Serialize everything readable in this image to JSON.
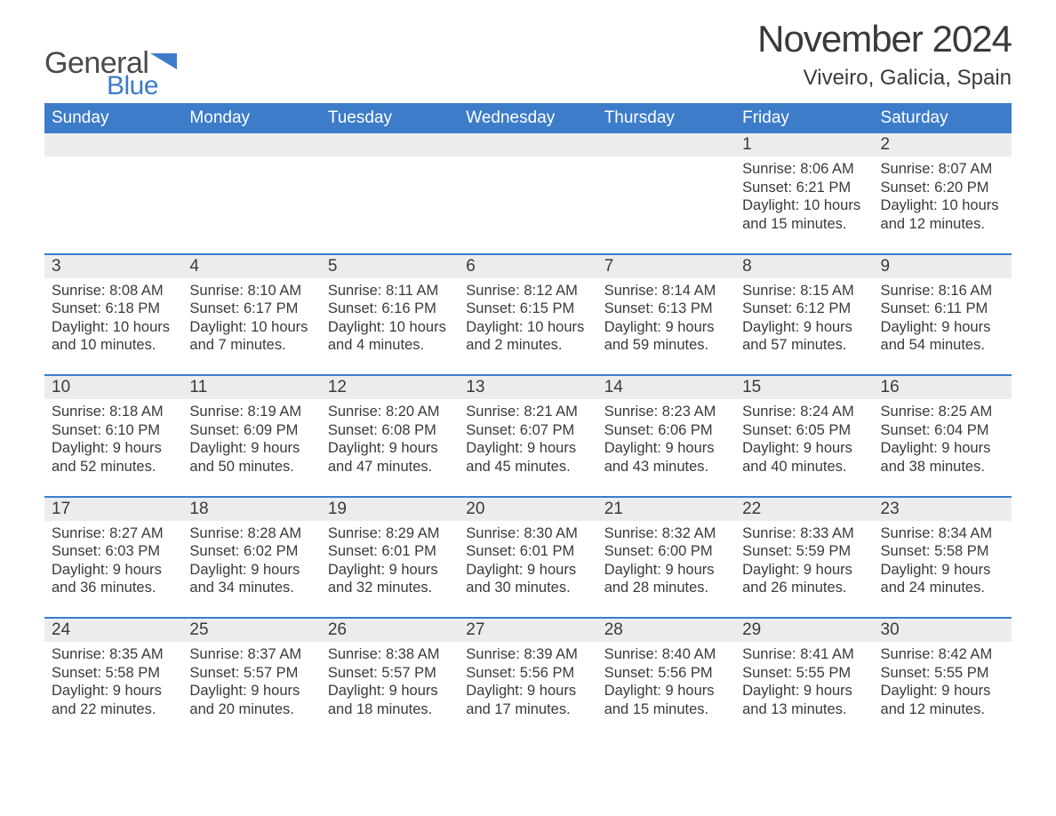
{
  "brand": {
    "general": "General",
    "blue": "Blue"
  },
  "title": "November 2024",
  "location": "Viveiro, Galicia, Spain",
  "colors": {
    "accent": "#3d7cc9",
    "row_bg": "#ececec",
    "text": "#3a3a3a",
    "background": "#ffffff"
  },
  "fonts": {
    "title_pt": 42,
    "location_pt": 24,
    "dow_pt": 19,
    "daynum_pt": 19,
    "info_pt": 16.5
  },
  "days_of_week": [
    "Sunday",
    "Monday",
    "Tuesday",
    "Wednesday",
    "Thursday",
    "Friday",
    "Saturday"
  ],
  "weeks": [
    [
      null,
      null,
      null,
      null,
      null,
      {
        "d": "1",
        "sr": "Sunrise: 8:06 AM",
        "ss": "Sunset: 6:21 PM",
        "dl1": "Daylight: 10 hours",
        "dl2": "and 15 minutes."
      },
      {
        "d": "2",
        "sr": "Sunrise: 8:07 AM",
        "ss": "Sunset: 6:20 PM",
        "dl1": "Daylight: 10 hours",
        "dl2": "and 12 minutes."
      }
    ],
    [
      {
        "d": "3",
        "sr": "Sunrise: 8:08 AM",
        "ss": "Sunset: 6:18 PM",
        "dl1": "Daylight: 10 hours",
        "dl2": "and 10 minutes."
      },
      {
        "d": "4",
        "sr": "Sunrise: 8:10 AM",
        "ss": "Sunset: 6:17 PM",
        "dl1": "Daylight: 10 hours",
        "dl2": "and 7 minutes."
      },
      {
        "d": "5",
        "sr": "Sunrise: 8:11 AM",
        "ss": "Sunset: 6:16 PM",
        "dl1": "Daylight: 10 hours",
        "dl2": "and 4 minutes."
      },
      {
        "d": "6",
        "sr": "Sunrise: 8:12 AM",
        "ss": "Sunset: 6:15 PM",
        "dl1": "Daylight: 10 hours",
        "dl2": "and 2 minutes."
      },
      {
        "d": "7",
        "sr": "Sunrise: 8:14 AM",
        "ss": "Sunset: 6:13 PM",
        "dl1": "Daylight: 9 hours",
        "dl2": "and 59 minutes."
      },
      {
        "d": "8",
        "sr": "Sunrise: 8:15 AM",
        "ss": "Sunset: 6:12 PM",
        "dl1": "Daylight: 9 hours",
        "dl2": "and 57 minutes."
      },
      {
        "d": "9",
        "sr": "Sunrise: 8:16 AM",
        "ss": "Sunset: 6:11 PM",
        "dl1": "Daylight: 9 hours",
        "dl2": "and 54 minutes."
      }
    ],
    [
      {
        "d": "10",
        "sr": "Sunrise: 8:18 AM",
        "ss": "Sunset: 6:10 PM",
        "dl1": "Daylight: 9 hours",
        "dl2": "and 52 minutes."
      },
      {
        "d": "11",
        "sr": "Sunrise: 8:19 AM",
        "ss": "Sunset: 6:09 PM",
        "dl1": "Daylight: 9 hours",
        "dl2": "and 50 minutes."
      },
      {
        "d": "12",
        "sr": "Sunrise: 8:20 AM",
        "ss": "Sunset: 6:08 PM",
        "dl1": "Daylight: 9 hours",
        "dl2": "and 47 minutes."
      },
      {
        "d": "13",
        "sr": "Sunrise: 8:21 AM",
        "ss": "Sunset: 6:07 PM",
        "dl1": "Daylight: 9 hours",
        "dl2": "and 45 minutes."
      },
      {
        "d": "14",
        "sr": "Sunrise: 8:23 AM",
        "ss": "Sunset: 6:06 PM",
        "dl1": "Daylight: 9 hours",
        "dl2": "and 43 minutes."
      },
      {
        "d": "15",
        "sr": "Sunrise: 8:24 AM",
        "ss": "Sunset: 6:05 PM",
        "dl1": "Daylight: 9 hours",
        "dl2": "and 40 minutes."
      },
      {
        "d": "16",
        "sr": "Sunrise: 8:25 AM",
        "ss": "Sunset: 6:04 PM",
        "dl1": "Daylight: 9 hours",
        "dl2": "and 38 minutes."
      }
    ],
    [
      {
        "d": "17",
        "sr": "Sunrise: 8:27 AM",
        "ss": "Sunset: 6:03 PM",
        "dl1": "Daylight: 9 hours",
        "dl2": "and 36 minutes."
      },
      {
        "d": "18",
        "sr": "Sunrise: 8:28 AM",
        "ss": "Sunset: 6:02 PM",
        "dl1": "Daylight: 9 hours",
        "dl2": "and 34 minutes."
      },
      {
        "d": "19",
        "sr": "Sunrise: 8:29 AM",
        "ss": "Sunset: 6:01 PM",
        "dl1": "Daylight: 9 hours",
        "dl2": "and 32 minutes."
      },
      {
        "d": "20",
        "sr": "Sunrise: 8:30 AM",
        "ss": "Sunset: 6:01 PM",
        "dl1": "Daylight: 9 hours",
        "dl2": "and 30 minutes."
      },
      {
        "d": "21",
        "sr": "Sunrise: 8:32 AM",
        "ss": "Sunset: 6:00 PM",
        "dl1": "Daylight: 9 hours",
        "dl2": "and 28 minutes."
      },
      {
        "d": "22",
        "sr": "Sunrise: 8:33 AM",
        "ss": "Sunset: 5:59 PM",
        "dl1": "Daylight: 9 hours",
        "dl2": "and 26 minutes."
      },
      {
        "d": "23",
        "sr": "Sunrise: 8:34 AM",
        "ss": "Sunset: 5:58 PM",
        "dl1": "Daylight: 9 hours",
        "dl2": "and 24 minutes."
      }
    ],
    [
      {
        "d": "24",
        "sr": "Sunrise: 8:35 AM",
        "ss": "Sunset: 5:58 PM",
        "dl1": "Daylight: 9 hours",
        "dl2": "and 22 minutes."
      },
      {
        "d": "25",
        "sr": "Sunrise: 8:37 AM",
        "ss": "Sunset: 5:57 PM",
        "dl1": "Daylight: 9 hours",
        "dl2": "and 20 minutes."
      },
      {
        "d": "26",
        "sr": "Sunrise: 8:38 AM",
        "ss": "Sunset: 5:57 PM",
        "dl1": "Daylight: 9 hours",
        "dl2": "and 18 minutes."
      },
      {
        "d": "27",
        "sr": "Sunrise: 8:39 AM",
        "ss": "Sunset: 5:56 PM",
        "dl1": "Daylight: 9 hours",
        "dl2": "and 17 minutes."
      },
      {
        "d": "28",
        "sr": "Sunrise: 8:40 AM",
        "ss": "Sunset: 5:56 PM",
        "dl1": "Daylight: 9 hours",
        "dl2": "and 15 minutes."
      },
      {
        "d": "29",
        "sr": "Sunrise: 8:41 AM",
        "ss": "Sunset: 5:55 PM",
        "dl1": "Daylight: 9 hours",
        "dl2": "and 13 minutes."
      },
      {
        "d": "30",
        "sr": "Sunrise: 8:42 AM",
        "ss": "Sunset: 5:55 PM",
        "dl1": "Daylight: 9 hours",
        "dl2": "and 12 minutes."
      }
    ]
  ]
}
